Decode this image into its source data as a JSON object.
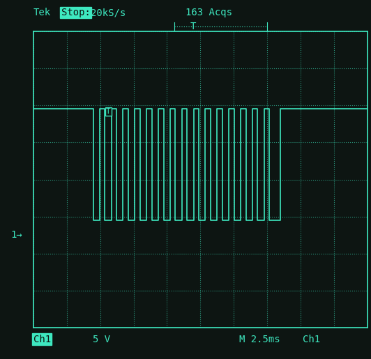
{
  "chart_data": {
    "type": "line",
    "annotations": [
      "Tek",
      "Stop:",
      "20kS/s",
      "163 Acqs",
      "T",
      "T",
      "1→",
      "Ch1",
      "5 V",
      "M 2.5ms",
      "Ch1"
    ],
    "ground_level": 0,
    "series": [
      {
        "name": "Ch1",
        "color": "#3ee8c0",
        "line_style": "solid",
        "x": [
          0,
          4.51,
          4.51,
          4.95,
          4.95,
          5.35,
          5.35,
          5.83,
          5.83,
          6.23,
          6.23,
          6.71,
          6.71,
          7.11,
          7.11,
          7.59,
          7.59,
          7.99,
          7.99,
          8.47,
          8.47,
          8.87,
          8.87,
          9.35,
          9.35,
          9.75,
          9.75,
          10.23,
          10.23,
          10.63,
          10.63,
          11.11,
          11.11,
          11.51,
          11.51,
          11.99,
          11.99,
          12.39,
          12.39,
          12.87,
          12.87,
          13.27,
          13.27,
          13.75,
          13.75,
          14.15,
          14.15,
          14.63,
          14.63,
          15.03,
          15.03,
          15.51,
          15.51,
          15.91,
          15.91,
          16.39,
          16.39,
          16.79,
          16.79,
          17.27,
          17.27,
          17.67,
          17.67,
          18.5,
          18.5,
          25
        ],
        "values": [
          17,
          17,
          2,
          2,
          17,
          17,
          2,
          2,
          17,
          17,
          2,
          2,
          17,
          17,
          2,
          2,
          17,
          17,
          2,
          2,
          17,
          17,
          2,
          2,
          17,
          17,
          2,
          2,
          17,
          17,
          2,
          2,
          17,
          17,
          2,
          2,
          17,
          17,
          2,
          2,
          17,
          17,
          2,
          2,
          17,
          17,
          2,
          2,
          17,
          17,
          2,
          2,
          17,
          17,
          2,
          2,
          17,
          17,
          2,
          2,
          17,
          17,
          2,
          2,
          17,
          17
        ]
      }
    ],
    "xlim": [
      0,
      25
    ],
    "xticks": [
      0,
      2.5,
      5,
      7.5,
      10,
      12.5,
      15,
      17.5,
      20,
      22.5,
      25
    ],
    "ylim": [
      -12.5,
      27.5
    ],
    "yticks": [
      -12.5,
      -7.5,
      -2.5,
      2.5,
      7.5,
      12.5,
      17.5,
      22.5,
      27.5
    ],
    "grid": true,
    "tick_labels": false
  }
}
